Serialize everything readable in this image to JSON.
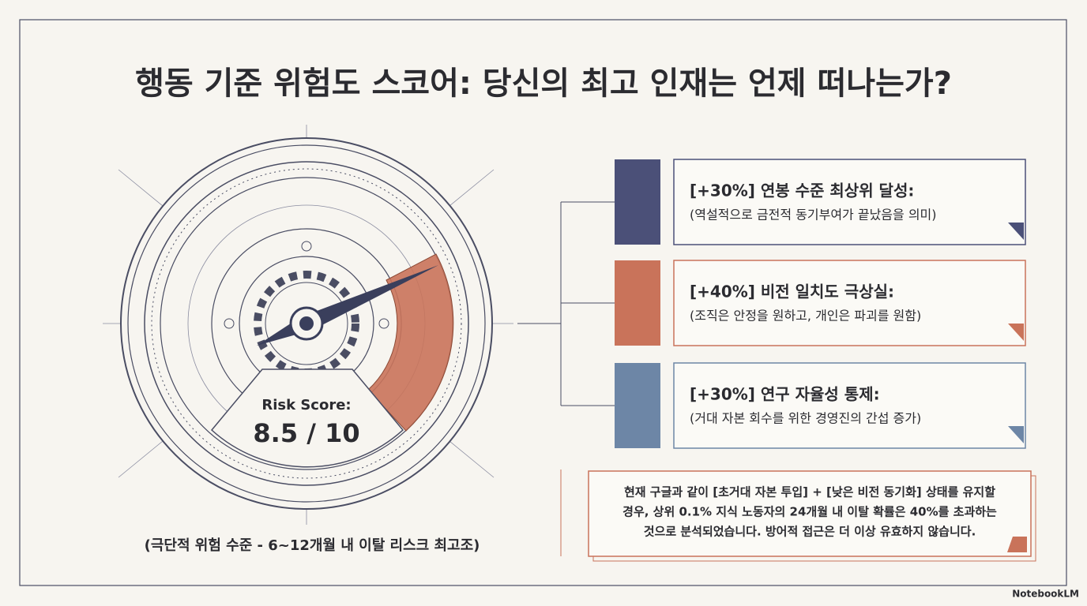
{
  "title": "행동 기준 위험도 스코어: 당신의 최고 인재는 언제 떠나는가?",
  "gauge": {
    "label": "Risk Score:",
    "score": "8.5 / 10",
    "caption": "(극단적 위험 수준 - 6~12개월 내 이탈 리스크 최고조)"
  },
  "factors": [
    {
      "heading": "[+30%] 연봉 수준 최상위 달성:",
      "note": "(역설적으로 금전적 동기부여가 끝났음을 의미)"
    },
    {
      "heading": "[+40%] 비전 일치도 극상실:",
      "note": "(조직은 안정을 원하고, 개인은 파괴를 원함)"
    },
    {
      "heading": "[+30%] 연구 자율성 통제:",
      "note": "(거대 자본 회수를 위한 경영진의 간섭 증가)"
    }
  ],
  "summary": [
    "현재 구글과 같이 [초거대 자본 투입] + [낮은 비전 동기화] 상태를 유지할",
    "경우, 상위 0.1% 지식 노동자의 24개월 내 이탈 확률은 40%를 초과하는",
    "것으로 분석되었습니다. 방어적 접근은 더 이상 유효하지 않습니다."
  ],
  "footer": "NotebookLM"
}
